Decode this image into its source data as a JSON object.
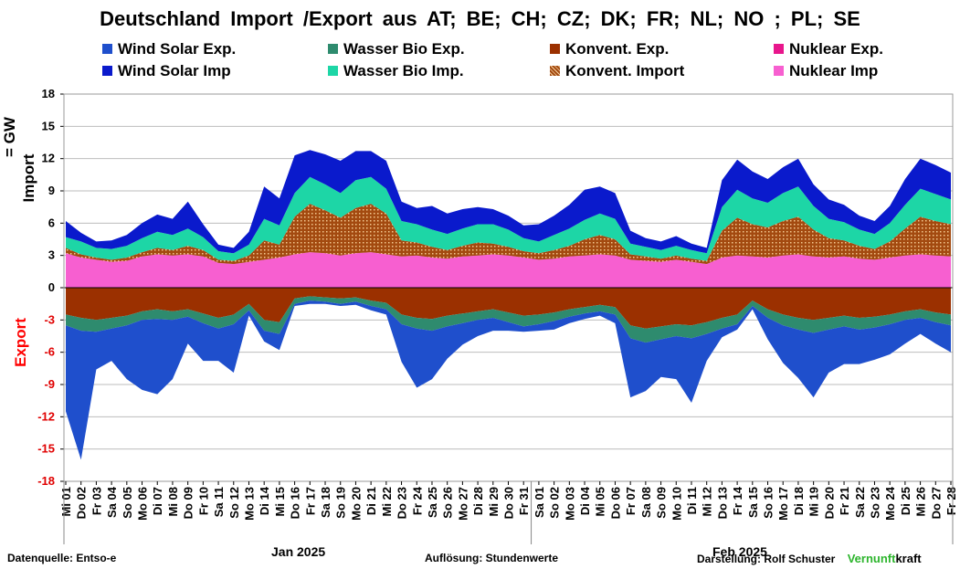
{
  "title": "Deutschland  Import /Export  aus AT;  BE;  CH;  CZ;  DK;  FR;  NL;  NO ;  PL;  SE",
  "legend": [
    {
      "label": "Wind Solar Exp.",
      "color": "#1f4fcc"
    },
    {
      "label": "Wasser Bio Exp.",
      "color": "#2e8b6e"
    },
    {
      "label": "Konvent. Exp.",
      "color": "#9b3000"
    },
    {
      "label": "Nuklear Exp.",
      "color": "#e8168c"
    },
    {
      "label": "Wind Solar Imp",
      "color": "#0a1acc"
    },
    {
      "label": "Wasser Bio Imp.",
      "color": "#1dd6a6"
    },
    {
      "label": "Konvent. Import",
      "color": "#a34a10"
    },
    {
      "label": "Nuklear Imp",
      "color": "#f75fd0"
    }
  ],
  "axis": {
    "ylabel_import": "Import",
    "ylabel_unit": "= GW",
    "ylabel_export": "Export",
    "yticks": [
      "18",
      "15",
      "12",
      "9",
      "6",
      "3",
      "0",
      "-3",
      "-6",
      "-9",
      "-12",
      "-15",
      "-18"
    ]
  },
  "xticks": [
    "Mi 01",
    "Do 02",
    "Fr 03",
    "Sa 04",
    "So 05",
    "Mo 06",
    "Di 07",
    "Mi 08",
    "Do 09",
    "Fr 10",
    "Sa 11",
    "So 12",
    "Mo 13",
    "Di 14",
    "Mi 15",
    "Do 16",
    "Fr 17",
    "Sa 18",
    "So 19",
    "Mo 20",
    "Di 21",
    "Mi 22",
    "Do 23",
    "Fr 24",
    "Sa 25",
    "So 26",
    "Mo 27",
    "Di 28",
    "Mi 29",
    "Do 30",
    "Fr 31",
    "Sa 01",
    "So 02",
    "Mo 03",
    "Di 04",
    "Mi 05",
    "Do 06",
    "Fr 07",
    "Sa 08",
    "So 09",
    "Mo 10",
    "Di 11",
    "Mi 12",
    "Do 13",
    "Fr 14",
    "Sa 15",
    "So 16",
    "Mo 17",
    "Di 18",
    "Mi 19",
    "Do 20",
    "Fr 21",
    "Sa 22",
    "So 23",
    "Mo 24",
    "Di 25",
    "Mi 26",
    "Do 27",
    "Fr 28"
  ],
  "months": [
    "Jan 2025",
    "Feb 2025"
  ],
  "footer": {
    "source": "Datenquelle: Entso-e",
    "resolution": "Auflösung: Stundenwerte",
    "author": "Darstellung:  Rolf Schuster",
    "brand_green": "Vernunft",
    "brand_black": "kraft"
  },
  "chart_data": {
    "type": "area",
    "ylabel": "Import  = GW",
    "ylim": [
      -18,
      18
    ],
    "grid": true,
    "legend_position": "top",
    "x": [
      "Mi 01",
      "Do 02",
      "Fr 03",
      "Sa 04",
      "So 05",
      "Mo 06",
      "Di 07",
      "Mi 08",
      "Do 09",
      "Fr 10",
      "Sa 11",
      "So 12",
      "Mo 13",
      "Di 14",
      "Mi 15",
      "Do 16",
      "Fr 17",
      "Sa 18",
      "So 19",
      "Mo 20",
      "Di 21",
      "Mi 22",
      "Do 23",
      "Fr 24",
      "Sa 25",
      "So 26",
      "Mo 27",
      "Di 28",
      "Mi 29",
      "Do 30",
      "Fr 31",
      "Sa 01",
      "So 02",
      "Mo 03",
      "Di 04",
      "Mi 05",
      "Do 06",
      "Fr 07",
      "Sa 08",
      "So 09",
      "Mo 10",
      "Di 11",
      "Mi 12",
      "Do 13",
      "Fr 14",
      "Sa 15",
      "So 16",
      "Mo 17",
      "Di 18",
      "Mi 19",
      "Do 20",
      "Fr 21",
      "Sa 22",
      "So 23",
      "Mo 24",
      "Di 25",
      "Mi 26",
      "Do 27",
      "Fr 28"
    ],
    "series": [
      {
        "name": "Nuklear Imp",
        "values": [
          3.2,
          2.8,
          2.6,
          2.4,
          2.5,
          2.9,
          3.1,
          3.0,
          3.1,
          2.9,
          2.3,
          2.2,
          2.4,
          2.6,
          2.8,
          3.1,
          3.3,
          3.2,
          3.0,
          3.2,
          3.3,
          3.1,
          2.9,
          3.0,
          2.8,
          2.7,
          2.9,
          3.0,
          3.1,
          3.0,
          2.8,
          2.6,
          2.7,
          2.9,
          3.0,
          3.1,
          3.0,
          2.6,
          2.5,
          2.4,
          2.6,
          2.4,
          2.2,
          2.8,
          3.0,
          2.9,
          2.8,
          3.0,
          3.1,
          2.9,
          2.8,
          2.9,
          2.7,
          2.6,
          2.8,
          3.0,
          3.1,
          3.0,
          2.9
        ]
      },
      {
        "name": "Konvent. Import",
        "values": [
          0.5,
          0.3,
          0.2,
          0.2,
          0.3,
          0.4,
          0.6,
          0.5,
          0.8,
          0.6,
          0.3,
          0.3,
          0.6,
          1.8,
          1.2,
          3.5,
          4.5,
          4.0,
          3.5,
          4.2,
          4.5,
          3.8,
          1.5,
          1.2,
          1.0,
          0.8,
          1.0,
          1.2,
          1.0,
          0.8,
          0.6,
          0.6,
          0.8,
          1.0,
          1.5,
          1.8,
          1.5,
          0.5,
          0.4,
          0.3,
          0.4,
          0.3,
          0.3,
          2.5,
          3.5,
          3.0,
          2.8,
          3.2,
          3.5,
          2.5,
          1.8,
          1.5,
          1.2,
          1.0,
          1.5,
          2.5,
          3.5,
          3.2,
          3.0
        ]
      },
      {
        "name": "Wasser Bio Imp.",
        "values": [
          1.0,
          1.2,
          0.9,
          1.0,
          1.1,
          1.3,
          1.5,
          1.4,
          1.6,
          1.2,
          0.8,
          0.7,
          1.0,
          2.0,
          1.8,
          2.2,
          2.5,
          2.4,
          2.3,
          2.6,
          2.5,
          2.3,
          1.8,
          1.7,
          1.6,
          1.5,
          1.6,
          1.7,
          1.8,
          1.6,
          1.2,
          1.1,
          1.4,
          1.6,
          1.8,
          2.0,
          1.9,
          1.0,
          0.9,
          0.8,
          0.9,
          0.8,
          0.7,
          2.2,
          2.6,
          2.4,
          2.3,
          2.6,
          2.8,
          2.2,
          1.8,
          1.7,
          1.5,
          1.4,
          1.7,
          2.2,
          2.6,
          2.5,
          2.3
        ]
      },
      {
        "name": "Wind Solar Imp",
        "values": [
          1.5,
          0.8,
          0.6,
          0.8,
          1.0,
          1.4,
          1.6,
          1.5,
          2.5,
          1.2,
          0.6,
          0.5,
          1.2,
          3.0,
          2.5,
          3.5,
          2.5,
          2.8,
          3.0,
          2.7,
          2.4,
          2.6,
          1.8,
          1.5,
          2.2,
          1.9,
          1.8,
          1.6,
          1.4,
          1.3,
          1.2,
          1.6,
          1.8,
          2.2,
          2.8,
          2.5,
          2.4,
          1.2,
          0.8,
          0.8,
          0.9,
          0.6,
          0.5,
          2.5,
          2.8,
          2.5,
          2.2,
          2.4,
          2.6,
          2.0,
          1.8,
          1.6,
          1.3,
          1.2,
          1.6,
          2.4,
          2.8,
          2.7,
          2.5
        ]
      },
      {
        "name": "Konvent. Exp.",
        "values": [
          -2.5,
          -2.8,
          -3.0,
          -2.8,
          -2.6,
          -2.2,
          -2.0,
          -2.2,
          -2.0,
          -2.4,
          -2.8,
          -2.5,
          -1.5,
          -3.0,
          -3.2,
          -1.0,
          -0.8,
          -0.9,
          -1.0,
          -0.9,
          -1.2,
          -1.4,
          -2.5,
          -2.8,
          -2.9,
          -2.6,
          -2.4,
          -2.2,
          -2.0,
          -2.3,
          -2.6,
          -2.5,
          -2.3,
          -2.0,
          -1.8,
          -1.6,
          -1.8,
          -3.5,
          -3.8,
          -3.6,
          -3.4,
          -3.5,
          -3.2,
          -2.8,
          -2.5,
          -1.2,
          -2.0,
          -2.5,
          -2.8,
          -3.0,
          -2.8,
          -2.6,
          -2.8,
          -2.7,
          -2.5,
          -2.2,
          -2.0,
          -2.3,
          -2.5
        ]
      },
      {
        "name": "Wasser Bio Exp.",
        "values": [
          -1.0,
          -1.2,
          -1.1,
          -1.0,
          -0.9,
          -0.8,
          -0.9,
          -0.8,
          -0.7,
          -0.9,
          -1.0,
          -0.9,
          -0.6,
          -1.0,
          -1.1,
          -0.5,
          -0.4,
          -0.4,
          -0.5,
          -0.4,
          -0.5,
          -0.6,
          -0.9,
          -1.0,
          -1.1,
          -1.0,
          -0.9,
          -0.8,
          -0.8,
          -0.9,
          -1.0,
          -0.9,
          -0.8,
          -0.7,
          -0.6,
          -0.6,
          -0.7,
          -1.2,
          -1.3,
          -1.2,
          -1.1,
          -1.2,
          -1.1,
          -1.0,
          -0.9,
          -0.5,
          -0.8,
          -1.0,
          -1.1,
          -1.2,
          -1.1,
          -1.0,
          -1.1,
          -1.0,
          -0.9,
          -0.8,
          -0.8,
          -0.9,
          -1.0
        ]
      },
      {
        "name": "Wind Solar Exp.",
        "values": [
          -8.0,
          -12.0,
          -3.5,
          -3.0,
          -5.0,
          -6.5,
          -7.0,
          -5.5,
          -2.5,
          -3.5,
          -3.0,
          -4.5,
          -0.5,
          -1.0,
          -1.5,
          -0.2,
          -0.3,
          -0.2,
          -0.2,
          -0.3,
          -0.4,
          -0.5,
          -3.5,
          -5.5,
          -4.5,
          -3.0,
          -2.0,
          -1.5,
          -1.2,
          -0.8,
          -0.5,
          -0.6,
          -0.8,
          -0.6,
          -0.5,
          -0.4,
          -0.8,
          -5.5,
          -4.5,
          -3.5,
          -4.0,
          -6.0,
          -2.5,
          -0.8,
          -0.5,
          -0.3,
          -2.0,
          -3.5,
          -4.5,
          -6.0,
          -4.0,
          -3.5,
          -3.2,
          -3.0,
          -2.8,
          -2.2,
          -1.5,
          -2.0,
          -2.5
        ]
      }
    ]
  }
}
